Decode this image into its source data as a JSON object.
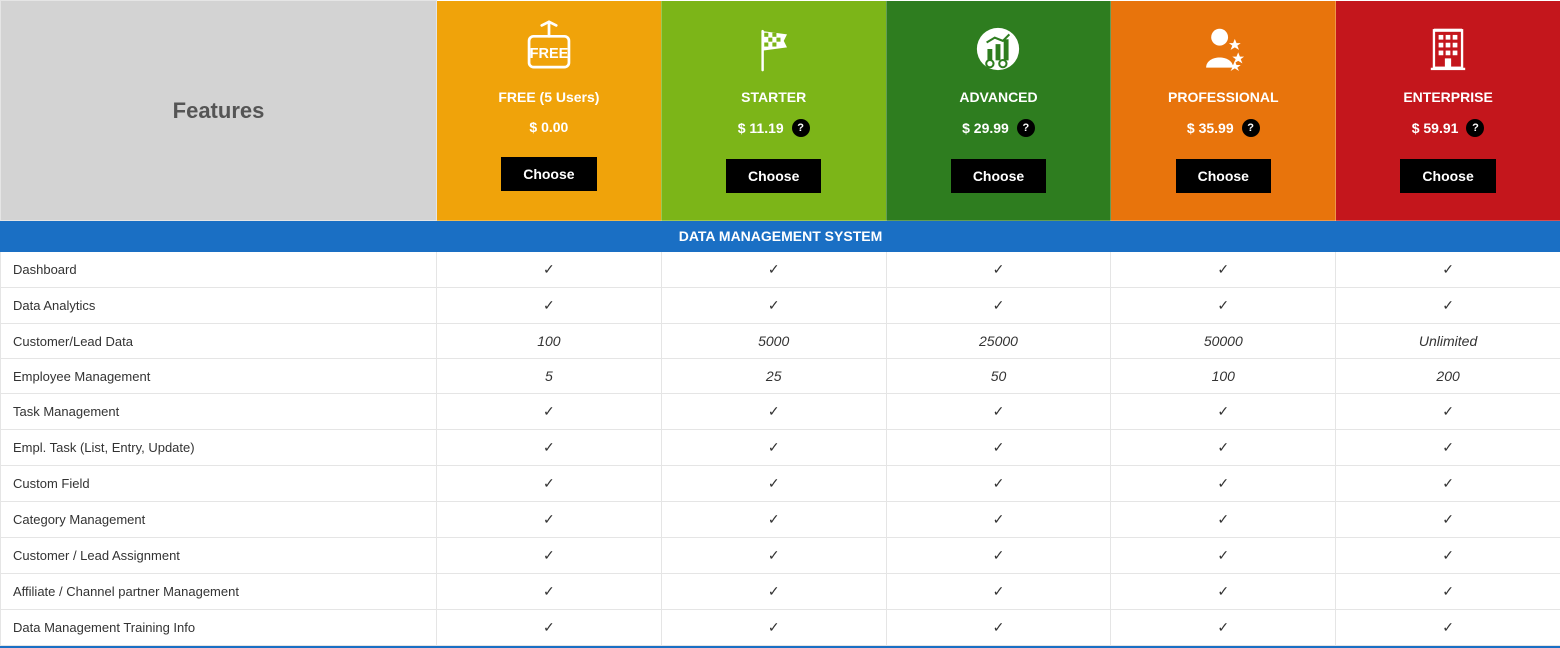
{
  "colors": {
    "features_bg": "#d3d3d3",
    "section_bg": "#1a6fc4",
    "section_text": "#ffffff",
    "border": "#e5e5e5",
    "row_text": "#333333",
    "button_bg": "#000000",
    "button_text": "#ffffff",
    "help_bg": "#000000",
    "bottom_border": "#1a6fc4"
  },
  "features_header": "Features",
  "choose_label": "Choose",
  "help_label": "?",
  "plans": [
    {
      "key": "free",
      "name": "FREE (5 Users)",
      "price": "$ 0.00",
      "show_help": false,
      "bg": "#f0a30a",
      "icon": "free"
    },
    {
      "key": "starter",
      "name": "STARTER",
      "price": "$ 11.19",
      "show_help": true,
      "bg": "#7cb518",
      "icon": "flag"
    },
    {
      "key": "advanced",
      "name": "ADVANCED",
      "price": "$ 29.99",
      "show_help": true,
      "bg": "#2e7d1f",
      "icon": "chart"
    },
    {
      "key": "professional",
      "name": "PROFESSIONAL",
      "price": "$ 35.99",
      "show_help": true,
      "bg": "#e8740c",
      "icon": "person"
    },
    {
      "key": "enterprise",
      "name": "ENTERPRISE",
      "price": "$ 59.91",
      "show_help": true,
      "bg": "#c4161c",
      "icon": "building"
    }
  ],
  "section_title": "DATA MANAGEMENT SYSTEM",
  "check": "✓",
  "rows": [
    {
      "label": "Dashboard",
      "type": "check",
      "values": [
        "✓",
        "✓",
        "✓",
        "✓",
        "✓"
      ]
    },
    {
      "label": "Data Analytics",
      "type": "check",
      "values": [
        "✓",
        "✓",
        "✓",
        "✓",
        "✓"
      ]
    },
    {
      "label": "Customer/Lead Data",
      "type": "number",
      "values": [
        "100",
        "5000",
        "25000",
        "50000",
        "Unlimited"
      ]
    },
    {
      "label": "Employee Management",
      "type": "number",
      "values": [
        "5",
        "25",
        "50",
        "100",
        "200"
      ]
    },
    {
      "label": "Task Management",
      "type": "check",
      "values": [
        "✓",
        "✓",
        "✓",
        "✓",
        "✓"
      ]
    },
    {
      "label": "Empl. Task (List, Entry, Update)",
      "type": "check",
      "values": [
        "✓",
        "✓",
        "✓",
        "✓",
        "✓"
      ]
    },
    {
      "label": "Custom Field",
      "type": "check",
      "values": [
        "✓",
        "✓",
        "✓",
        "✓",
        "✓"
      ]
    },
    {
      "label": "Category Management",
      "type": "check",
      "values": [
        "✓",
        "✓",
        "✓",
        "✓",
        "✓"
      ]
    },
    {
      "label": "Customer / Lead Assignment",
      "type": "check",
      "values": [
        "✓",
        "✓",
        "✓",
        "✓",
        "✓"
      ]
    },
    {
      "label": "Affiliate / Channel partner Management",
      "type": "check",
      "values": [
        "✓",
        "✓",
        "✓",
        "✓",
        "✓"
      ]
    },
    {
      "label": "Data Management Training Info",
      "type": "check",
      "values": [
        "✓",
        "✓",
        "✓",
        "✓",
        "✓"
      ]
    }
  ]
}
